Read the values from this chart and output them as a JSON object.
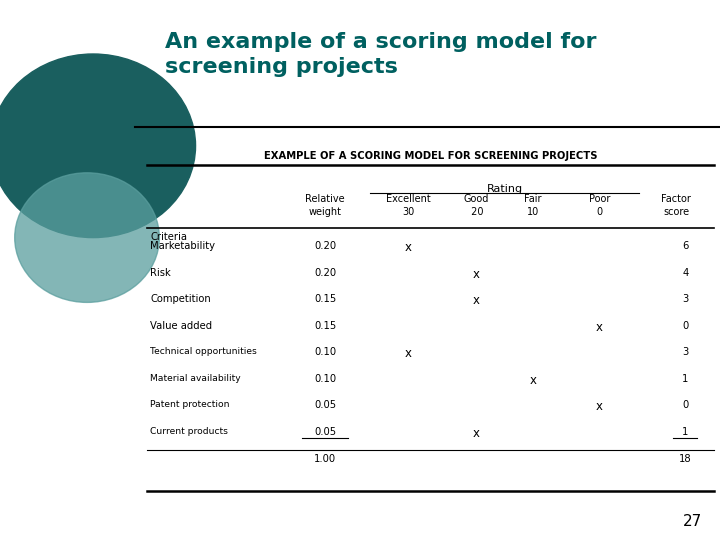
{
  "title": "An example of a scoring model for\nscreening projects",
  "title_color": "#006060",
  "table_title": "EXAMPLE OF A SCORING MODEL FOR SCREENING PROJECTS",
  "page_number": "27",
  "bg_color": "#ffffff",
  "rating_label": "Rating",
  "criteria_label": "Criteria",
  "rows": [
    {
      "criteria": "Marketability",
      "weight": "0.20",
      "excellent": true,
      "good": false,
      "fair": false,
      "poor": false,
      "score": "6"
    },
    {
      "criteria": "Risk",
      "weight": "0.20",
      "excellent": false,
      "good": true,
      "fair": false,
      "poor": false,
      "score": "4"
    },
    {
      "criteria": "Competition",
      "weight": "0.15",
      "excellent": false,
      "good": true,
      "fair": false,
      "poor": false,
      "score": "3"
    },
    {
      "criteria": "Value added",
      "weight": "0.15",
      "excellent": false,
      "good": false,
      "fair": false,
      "poor": true,
      "score": "0"
    },
    {
      "criteria": "Technical opportunities",
      "weight": "0.10",
      "excellent": true,
      "good": false,
      "fair": false,
      "poor": false,
      "score": "3"
    },
    {
      "criteria": "Material availability",
      "weight": "0.10",
      "excellent": false,
      "good": false,
      "fair": true,
      "poor": false,
      "score": "1"
    },
    {
      "criteria": "Patent protection",
      "weight": "0.05",
      "excellent": false,
      "good": false,
      "fair": false,
      "poor": true,
      "score": "0"
    },
    {
      "criteria": "Current products",
      "weight": "0.05",
      "excellent": false,
      "good": true,
      "fair": false,
      "poor": false,
      "score": "1"
    }
  ],
  "total_weight": "1.00",
  "total_score": "18"
}
